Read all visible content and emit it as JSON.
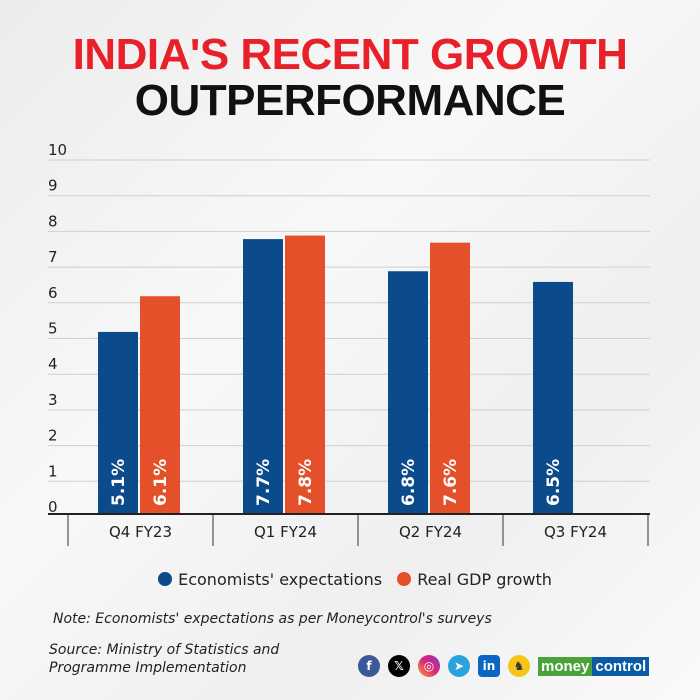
{
  "title_line1": "INDIA'S RECENT GROWTH",
  "title_line2": "OUTPERFORMANCE",
  "colors": {
    "title_red": "#e8202a",
    "economists": "#0b4a8b",
    "real_gdp": "#e4502a"
  },
  "chart_data": {
    "type": "bar",
    "categories": [
      "Q4 FY23",
      "Q1 FY24",
      "Q2 FY24",
      "Q3 FY24"
    ],
    "series": [
      {
        "name": "Economists' expectations",
        "values": [
          5.1,
          7.7,
          6.8,
          6.5
        ],
        "labels": [
          "5.1%",
          "7.7%",
          "6.8%",
          "6.5%"
        ]
      },
      {
        "name": "Real GDP growth",
        "values": [
          6.1,
          7.8,
          7.6,
          null
        ],
        "labels": [
          "6.1%",
          "7.8%",
          "7.6%",
          ""
        ]
      }
    ],
    "ylim": [
      0,
      10
    ],
    "yticks": [
      "0",
      "1",
      "2",
      "3",
      "4",
      "5",
      "6",
      "7",
      "8",
      "9",
      "10"
    ],
    "grid": true,
    "legend": "bottom"
  },
  "note": "Note: Economists' expectations as per Moneycontrol's surveys",
  "source_line1": "Source: Ministry of Statistics and",
  "source_line2": "Programme Implementation",
  "social_icons": [
    "facebook-icon",
    "x-icon",
    "instagram-icon",
    "telegram-icon",
    "linkedin-icon",
    "koo-icon"
  ],
  "brand": {
    "part1": "money",
    "part2": "control"
  }
}
